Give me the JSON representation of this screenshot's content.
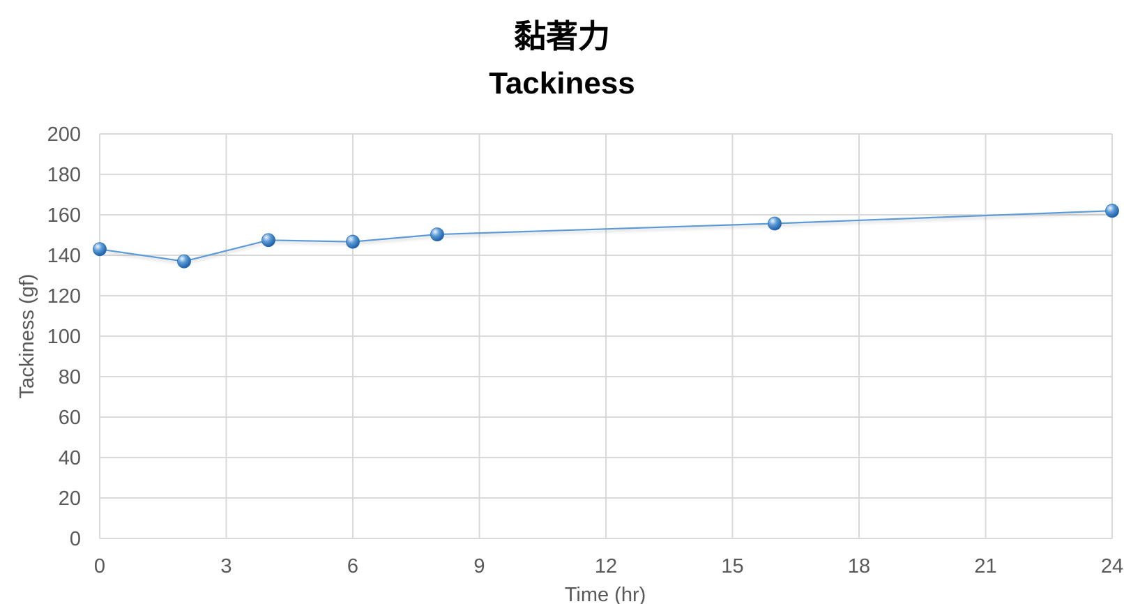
{
  "colors": {
    "series": "#5b9bd5",
    "marker_light": "#cfe6ff",
    "marker_dark": "#1f5fa8",
    "grid": "#d9d9d9",
    "tick_text": "#595959"
  },
  "chart_data": {
    "type": "scatter",
    "title": "黏著力",
    "subtitle": "Tackiness",
    "xlabel": "Time (hr)",
    "ylabel": "Tackiness (gf)",
    "xlim": [
      0,
      24
    ],
    "ylim": [
      0,
      200
    ],
    "x_ticks": [
      0,
      3,
      6,
      9,
      12,
      15,
      18,
      21,
      24
    ],
    "y_ticks": [
      0,
      20,
      40,
      60,
      80,
      100,
      120,
      140,
      160,
      180,
      200
    ],
    "grid": true,
    "legend": "none",
    "series": [
      {
        "x": [
          0,
          2,
          4,
          6,
          8,
          16,
          24
        ],
        "y": [
          143,
          137,
          147.5,
          146.7,
          150.3,
          155.7,
          162
        ],
        "marker": "sphere",
        "line": "straight"
      }
    ]
  }
}
